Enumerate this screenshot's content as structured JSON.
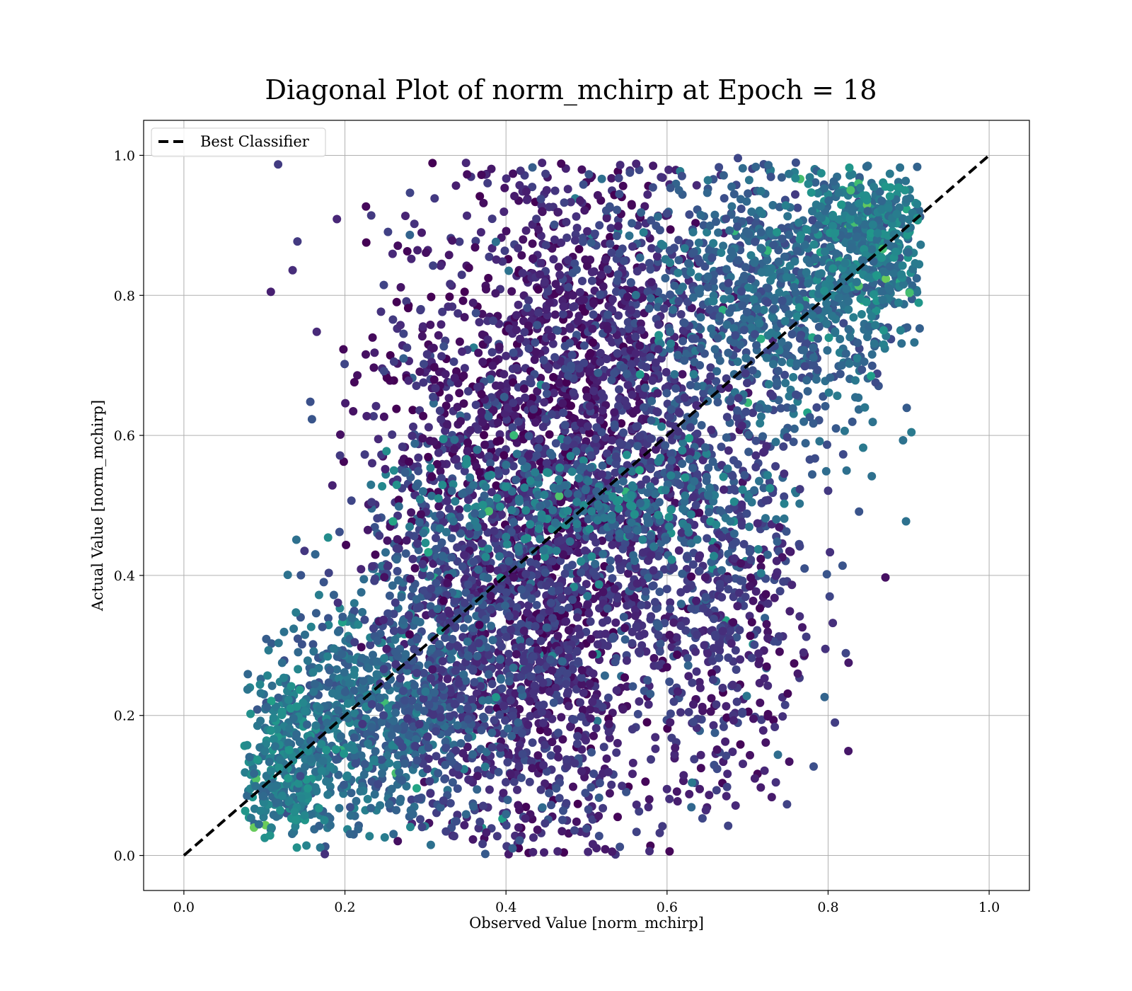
{
  "chart_data": {
    "type": "scatter",
    "title": "Diagonal Plot of norm_mchirp at Epoch = 18",
    "xlabel": "Observed Value [norm_mchirp]",
    "ylabel": "Actual Value [norm_mchirp]",
    "xlim": [
      -0.05,
      1.05
    ],
    "ylim": [
      -0.05,
      1.05
    ],
    "xticks": [
      0.0,
      0.2,
      0.4,
      0.6,
      0.8,
      1.0
    ],
    "yticks": [
      0.0,
      0.2,
      0.4,
      0.6,
      0.8,
      1.0
    ],
    "xtick_labels": [
      "0.0",
      "0.2",
      "0.4",
      "0.6",
      "0.8",
      "1.0"
    ],
    "ytick_labels": [
      "0.0",
      "0.2",
      "0.4",
      "0.6",
      "0.8",
      "1.0"
    ],
    "grid": true,
    "legend": {
      "position": "top-left",
      "entries": [
        "Best Classifier"
      ]
    },
    "reference_line": {
      "name": "Best Classifier",
      "x": [
        0.0,
        1.0
      ],
      "y": [
        0.0,
        1.0
      ],
      "color": "#000000",
      "style": "dashed"
    },
    "colormap": "viridis",
    "point_color_range": [
      "#440154",
      "#fde725"
    ],
    "point_clusters": [
      {
        "cx": 0.46,
        "cy": 0.55,
        "sx": 0.07,
        "sy": 0.26,
        "n": 1500,
        "c": 0.08
      },
      {
        "cx": 0.42,
        "cy": 0.3,
        "sx": 0.08,
        "sy": 0.17,
        "n": 900,
        "c": 0.15
      },
      {
        "cx": 0.55,
        "cy": 0.7,
        "sx": 0.08,
        "sy": 0.16,
        "n": 700,
        "c": 0.15
      },
      {
        "cx": 0.75,
        "cy": 0.8,
        "sx": 0.08,
        "sy": 0.1,
        "n": 900,
        "c": 0.32
      },
      {
        "cx": 0.85,
        "cy": 0.88,
        "sx": 0.04,
        "sy": 0.06,
        "n": 450,
        "c": 0.42
      },
      {
        "cx": 0.22,
        "cy": 0.2,
        "sx": 0.06,
        "sy": 0.08,
        "n": 700,
        "c": 0.35
      },
      {
        "cx": 0.12,
        "cy": 0.12,
        "sx": 0.03,
        "sy": 0.05,
        "n": 300,
        "c": 0.42
      },
      {
        "cx": 0.33,
        "cy": 0.32,
        "sx": 0.06,
        "sy": 0.12,
        "n": 500,
        "c": 0.25
      },
      {
        "cx": 0.63,
        "cy": 0.48,
        "sx": 0.06,
        "sy": 0.14,
        "n": 500,
        "c": 0.22
      },
      {
        "cx": 0.3,
        "cy": 0.62,
        "sx": 0.05,
        "sy": 0.16,
        "n": 260,
        "c": 0.1
      },
      {
        "cx": 0.68,
        "cy": 0.3,
        "sx": 0.05,
        "sy": 0.12,
        "n": 260,
        "c": 0.12
      },
      {
        "cx": 0.5,
        "cy": 0.5,
        "sx": 0.12,
        "sy": 0.04,
        "n": 300,
        "c": 0.4
      }
    ],
    "outliers": [
      {
        "x": 0.117,
        "y": 0.987
      },
      {
        "x": 0.108,
        "y": 0.805
      },
      {
        "x": 0.141,
        "y": 0.877
      },
      {
        "x": 0.135,
        "y": 0.836
      },
      {
        "x": 0.165,
        "y": 0.748
      },
      {
        "x": 0.157,
        "y": 0.648
      },
      {
        "x": 0.159,
        "y": 0.623
      },
      {
        "x": 0.19,
        "y": 0.909
      },
      {
        "x": 0.782,
        "y": 0.127
      },
      {
        "x": 0.749,
        "y": 0.073
      },
      {
        "x": 0.818,
        "y": 0.414
      },
      {
        "x": 0.802,
        "y": 0.37
      },
      {
        "x": 0.822,
        "y": 0.289
      },
      {
        "x": 0.8,
        "y": 0.521
      },
      {
        "x": 0.644,
        "y": 0.053
      },
      {
        "x": 0.175,
        "y": 0.002
      },
      {
        "x": 0.688,
        "y": 0.996
      }
    ]
  }
}
